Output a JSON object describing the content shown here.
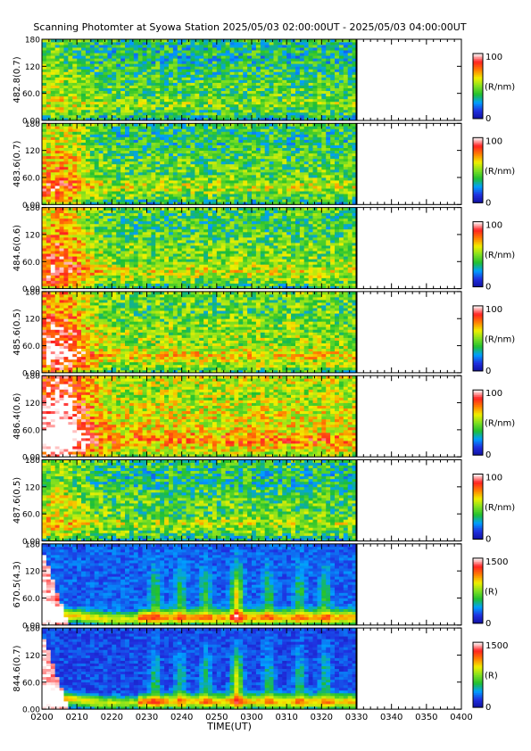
{
  "title": "Scanning Photomter at Syowa Station 2025/05/03 02:00:00UT - 2025/05/03 04:00:00UT",
  "chart_data": {
    "type": "heatmap",
    "xlabel": "TIME(UT)",
    "x_ticks": [
      "0200",
      "0210",
      "0220",
      "0230",
      "0240",
      "0250",
      "0300",
      "0310",
      "0320",
      "0330",
      "0340",
      "0350",
      "0400"
    ],
    "xlim": [
      "0200",
      "0400"
    ],
    "data_end": "0330",
    "y_ticks": [
      "0.00",
      "60.0",
      "120",
      "180"
    ],
    "ylim": [
      0,
      180
    ],
    "colormap": [
      "#1010a0",
      "#2030e0",
      "#00a0ff",
      "#20c030",
      "#80e020",
      "#f0f000",
      "#ff8000",
      "#ff2020",
      "#ffffff"
    ],
    "panels": [
      {
        "ylabel": "482.8(0.7)",
        "cbar_max": "100",
        "cbar_min": "0",
        "unit": "(R/nm)"
      },
      {
        "ylabel": "483.6(0.7)",
        "cbar_max": "100",
        "cbar_min": "0",
        "unit": "(R/nm)"
      },
      {
        "ylabel": "484.6(0.6)",
        "cbar_max": "100",
        "cbar_min": "0",
        "unit": "(R/nm)"
      },
      {
        "ylabel": "485.6(0.5)",
        "cbar_max": "100",
        "cbar_min": "0",
        "unit": "(R/nm)"
      },
      {
        "ylabel": "486.4(0.6)",
        "cbar_max": "100",
        "cbar_min": "0",
        "unit": "(R/nm)"
      },
      {
        "ylabel": "487.6(0.5)",
        "cbar_max": "100",
        "cbar_min": "0",
        "unit": "(R/nm)"
      },
      {
        "ylabel": "670.5(4.3)",
        "cbar_max": "1500",
        "cbar_min": "0",
        "unit": "(R)"
      },
      {
        "ylabel": "844.6(0.7)",
        "cbar_max": "1500",
        "cbar_min": "0",
        "unit": "(R)"
      }
    ]
  }
}
